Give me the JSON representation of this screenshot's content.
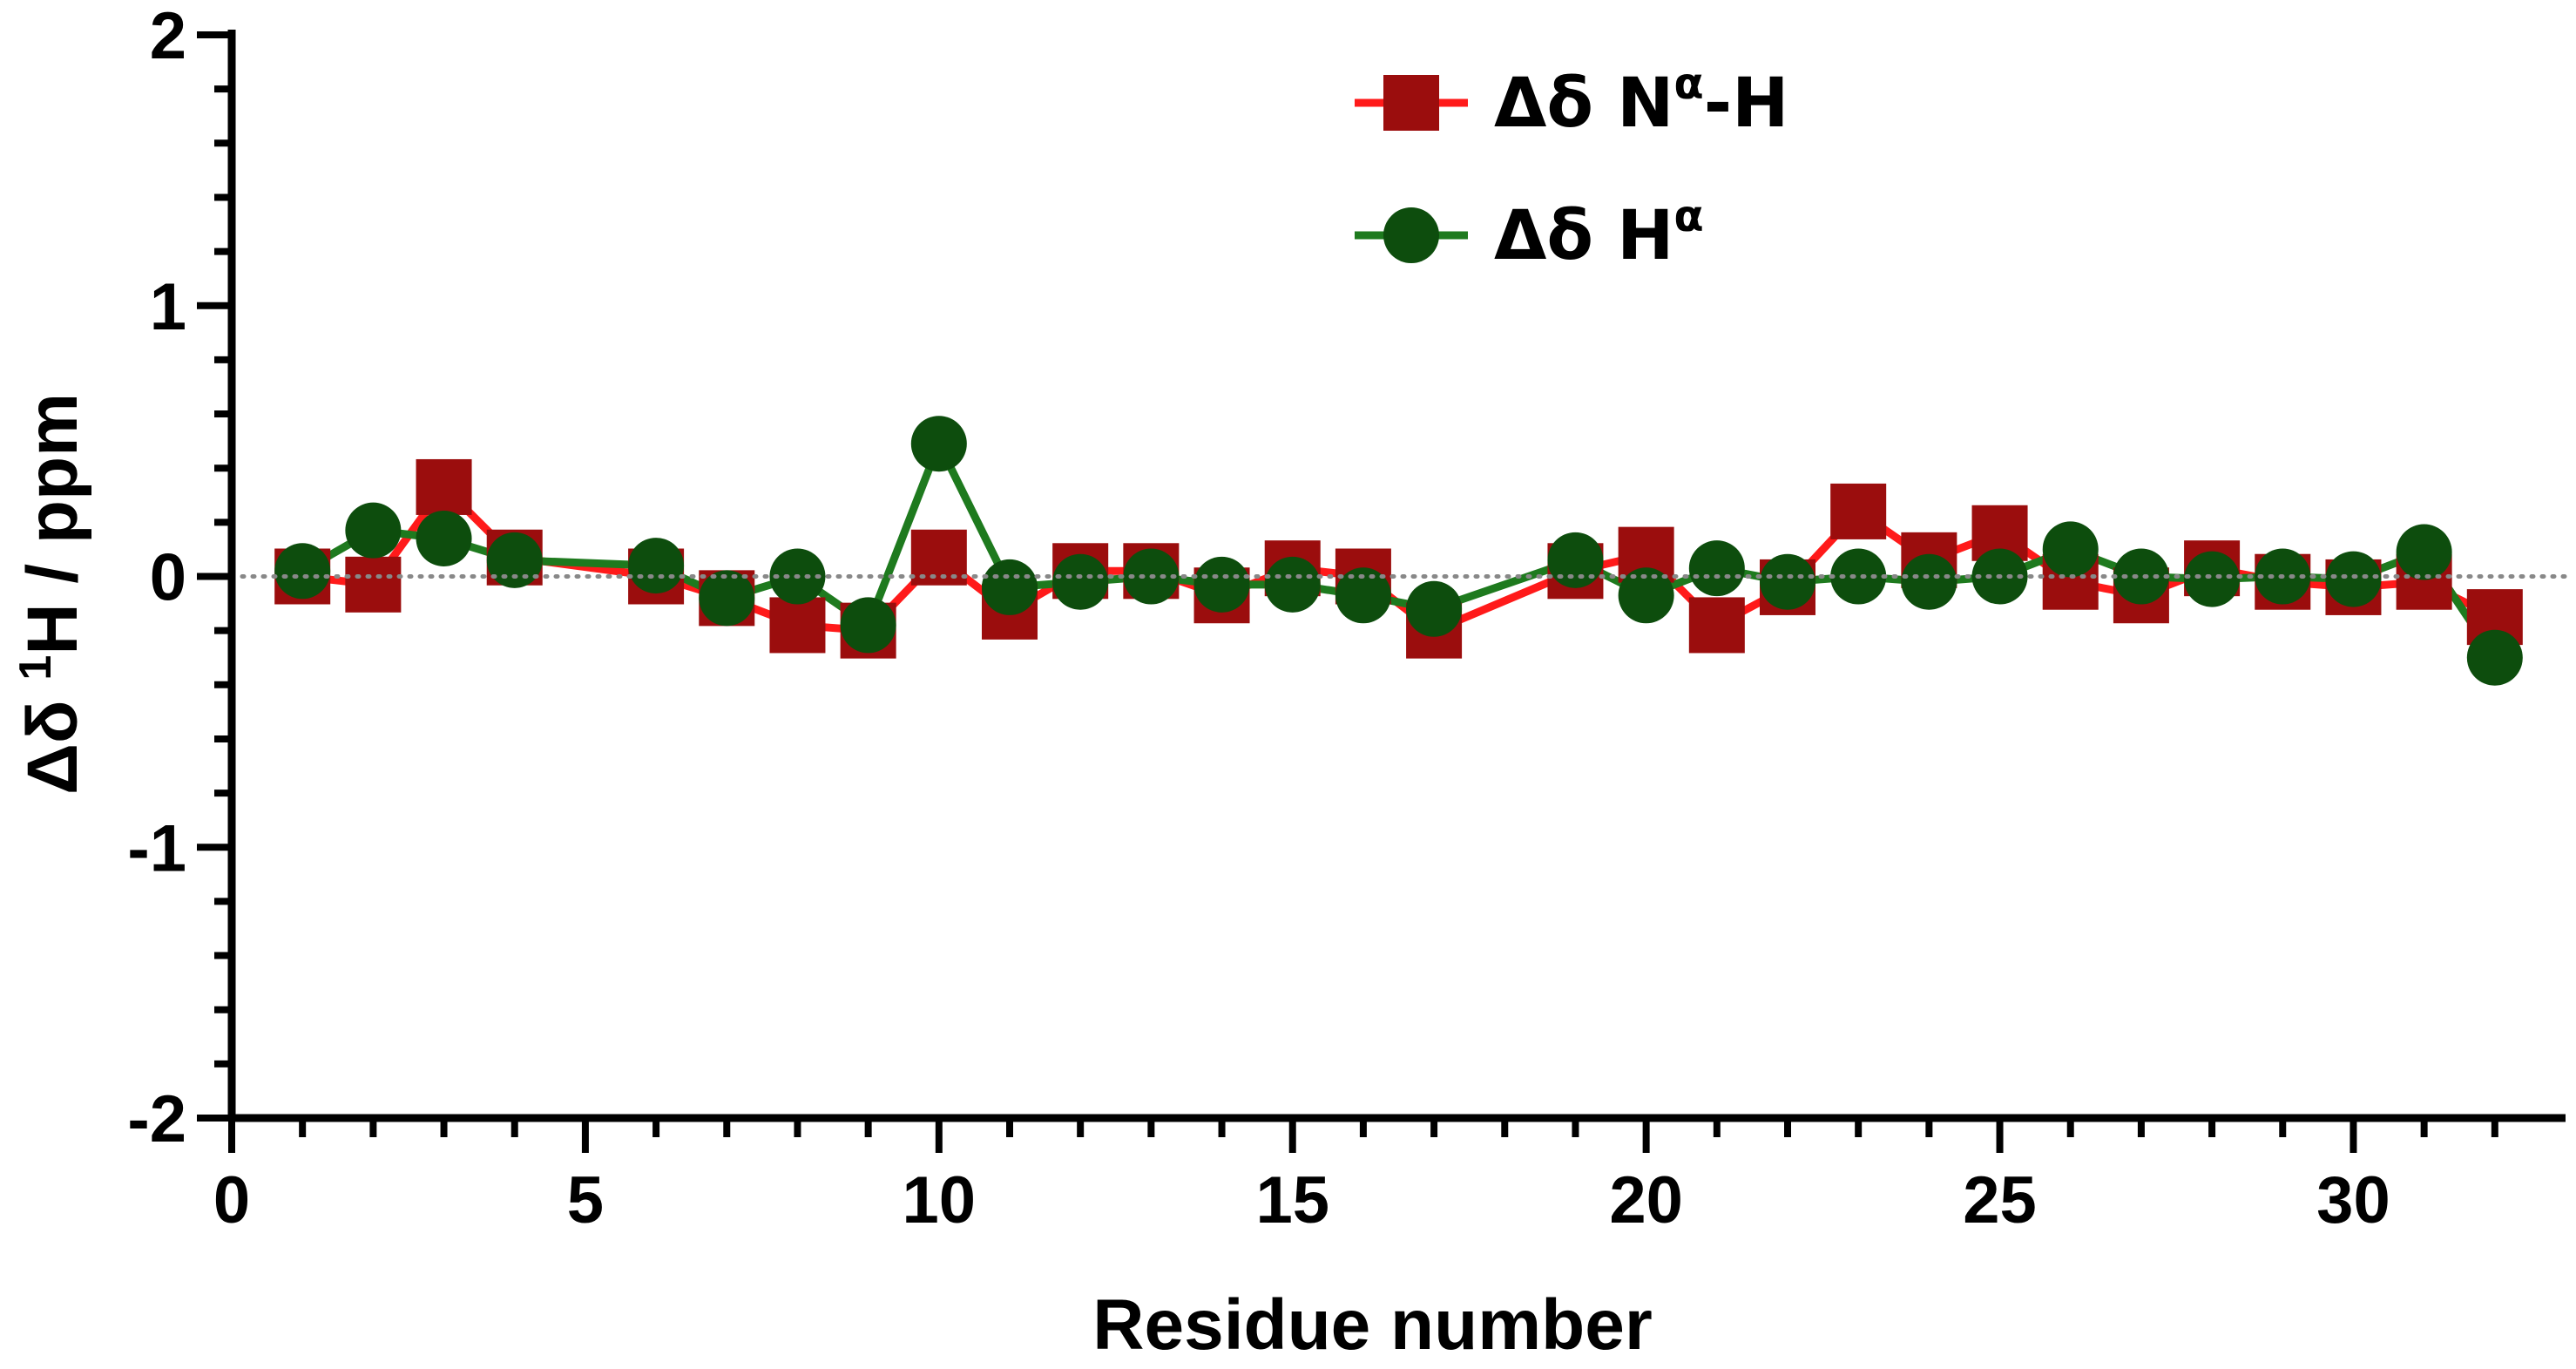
{
  "chart_data": {
    "type": "line",
    "title": "",
    "xlabel": "Residue number",
    "ylabel": {
      "prefix": "Δδ ",
      "sup": "1",
      "suffix": "H / ppm"
    },
    "xlim": [
      0,
      33
    ],
    "ylim": [
      -2,
      2
    ],
    "xticks": [
      0,
      5,
      10,
      15,
      20,
      25,
      30
    ],
    "yticks": [
      -2,
      -1,
      0,
      1,
      2
    ],
    "zero_reference_line": "dotted",
    "grid": false,
    "legend_position": "top-center",
    "series": [
      {
        "name": {
          "base": "Δδ N",
          "sup": "α",
          "tail": "-H"
        },
        "marker": "square",
        "marker_color": "#9b0d0d",
        "line_color": "#ff1a1a",
        "x": [
          1,
          2,
          3,
          4,
          6,
          7,
          8,
          9,
          10,
          11,
          12,
          13,
          14,
          15,
          16,
          17,
          19,
          20,
          21,
          22,
          23,
          24,
          25,
          26,
          27,
          28,
          29,
          30,
          31,
          32
        ],
        "y": [
          0.0,
          -0.03,
          0.33,
          0.07,
          0.0,
          -0.08,
          -0.18,
          -0.2,
          0.07,
          -0.13,
          0.02,
          0.02,
          -0.07,
          0.03,
          0.0,
          -0.2,
          0.02,
          0.08,
          -0.18,
          -0.04,
          0.24,
          0.06,
          0.16,
          -0.02,
          -0.07,
          0.03,
          -0.02,
          -0.04,
          -0.02,
          -0.15
        ]
      },
      {
        "name": {
          "base": "Δδ H",
          "sup": "α",
          "tail": ""
        },
        "marker": "circle",
        "marker_color": "#0d4d0d",
        "line_color": "#1e7a1e",
        "x": [
          1,
          2,
          3,
          4,
          6,
          7,
          8,
          9,
          10,
          11,
          12,
          13,
          14,
          15,
          16,
          17,
          19,
          20,
          21,
          22,
          23,
          24,
          25,
          26,
          27,
          28,
          29,
          30,
          31,
          32
        ],
        "y": [
          0.02,
          0.17,
          0.14,
          0.06,
          0.04,
          -0.08,
          0.0,
          -0.18,
          0.49,
          -0.04,
          -0.02,
          0.0,
          -0.03,
          -0.03,
          -0.07,
          -0.12,
          0.06,
          -0.07,
          0.03,
          -0.02,
          0.0,
          -0.02,
          0.0,
          0.1,
          0.0,
          -0.01,
          0.0,
          -0.01,
          0.09,
          -0.3
        ]
      }
    ]
  }
}
